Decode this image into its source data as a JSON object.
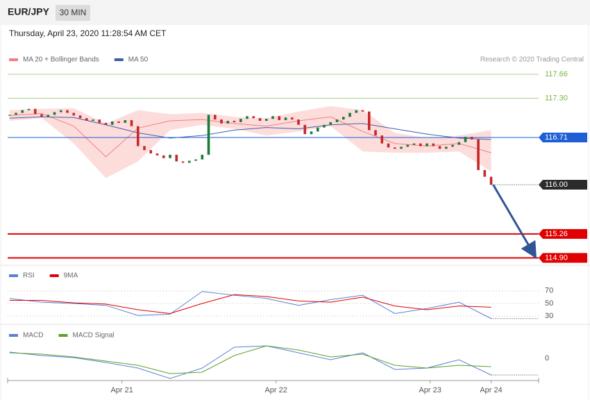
{
  "header": {
    "symbol": "EUR/JPY",
    "interval": "30 MIN",
    "timestamp": "Thursday, April 23, 2020 11:28:54 AM CET",
    "credit": "Research © 2020 Trading Central"
  },
  "chart_data": [
    {
      "type": "candlestick",
      "up_color": "#1b7a3a",
      "down_color": "#c62828",
      "xlim": [
        -0.6,
        164.8
      ],
      "ylim": [
        114.8,
        118.4
      ],
      "x": [
        0,
        2,
        4,
        6,
        8,
        10,
        12,
        14,
        16,
        18,
        20,
        22,
        24,
        26,
        28,
        30,
        32,
        34,
        36,
        38,
        40,
        42,
        44,
        46,
        48,
        50,
        52,
        54,
        56,
        58,
        60,
        62,
        64,
        66,
        68,
        70,
        72,
        74,
        76,
        78,
        80,
        82,
        84,
        86,
        88,
        90,
        92,
        94,
        96,
        98,
        100,
        102,
        104,
        106,
        108,
        110,
        112,
        114,
        116,
        118,
        120,
        122,
        124,
        126,
        128,
        130,
        132,
        134,
        136,
        138,
        140,
        142,
        144,
        146,
        148,
        150
      ],
      "close": [
        117.05,
        117.08,
        117.12,
        117.14,
        117.06,
        117.02,
        117.05,
        117.09,
        117.12,
        117.08,
        117.04,
        117.0,
        116.96,
        116.98,
        116.93,
        116.9,
        116.95,
        116.93,
        116.97,
        116.88,
        116.58,
        116.52,
        116.47,
        116.44,
        116.4,
        116.45,
        116.35,
        116.33,
        116.36,
        116.38,
        116.45,
        117.05,
        116.98,
        116.92,
        116.96,
        116.94,
        116.99,
        117.03,
        117.0,
        116.96,
        116.99,
        117.03,
        116.97,
        117.01,
        116.98,
        116.9,
        116.76,
        116.8,
        116.86,
        116.9,
        116.94,
        116.98,
        117.02,
        117.08,
        117.12,
        117.1,
        116.82,
        116.74,
        116.62,
        116.56,
        116.54,
        116.57,
        116.6,
        116.62,
        116.58,
        116.62,
        116.58,
        116.54,
        116.57,
        116.6,
        116.64,
        116.72,
        116.68,
        116.22,
        116.12,
        116.0
      ],
      "series": [
        {
          "name": "MA 20 + Bollinger Bands",
          "color": "#f08080",
          "band_color": "#fcd3d3",
          "x": [
            0,
            10,
            20,
            30,
            40,
            50,
            60,
            70,
            80,
            90,
            100,
            110,
            120,
            130,
            140,
            150
          ],
          "values": [
            117.04,
            117.07,
            116.88,
            116.42,
            116.85,
            116.96,
            116.98,
            116.92,
            116.88,
            116.96,
            117.02,
            116.8,
            116.62,
            116.58,
            116.62,
            116.48
          ],
          "upper": [
            117.12,
            117.14,
            117.15,
            116.92,
            117.12,
            117.06,
            117.08,
            117.02,
            117.0,
            117.1,
            117.18,
            117.12,
            116.78,
            116.7,
            116.74,
            116.82
          ],
          "lower": [
            116.96,
            117.0,
            116.62,
            116.1,
            116.35,
            116.82,
            116.9,
            116.84,
            116.74,
            116.8,
            116.88,
            116.5,
            116.48,
            116.48,
            116.5,
            116.2
          ]
        },
        {
          "name": "MA 50",
          "color": "#3f5fa8",
          "x": [
            0,
            10,
            20,
            30,
            40,
            50,
            60,
            70,
            80,
            90,
            100,
            110,
            120,
            130,
            140,
            150
          ],
          "values": [
            117.0,
            117.02,
            117.01,
            116.9,
            116.78,
            116.7,
            116.74,
            116.82,
            116.86,
            116.84,
            116.9,
            116.92,
            116.84,
            116.76,
            116.7,
            116.68
          ]
        }
      ],
      "levels": [
        {
          "value": 117.66,
          "color": "#7cb342",
          "style": "text"
        },
        {
          "value": 117.3,
          "label": "117.30",
          "color": "#7cb342",
          "style": "text"
        },
        {
          "value": 116.71,
          "color": "#1e5fd6",
          "style": "box-solid"
        },
        {
          "value": 116.0,
          "label": "116.00",
          "color": "#2b2b2b",
          "style": "box-dotted"
        },
        {
          "value": 115.26,
          "color": "#e00000",
          "style": "box-thick"
        },
        {
          "value": 114.9,
          "label": "114.90",
          "color": "#e00000",
          "style": "box-thick"
        }
      ]
    },
    {
      "type": "line",
      "xlim": [
        -0.6,
        164.8
      ],
      "ylim": [
        18,
        104
      ],
      "yticks": [
        70,
        50,
        30
      ],
      "x": [
        0,
        10,
        20,
        30,
        40,
        50,
        60,
        70,
        80,
        90,
        100,
        110,
        120,
        130,
        140,
        150
      ],
      "series": [
        {
          "name": "RSI",
          "color": "#5b7fd6",
          "values": [
            58,
            52,
            50,
            47,
            31,
            33,
            69,
            63,
            58,
            47,
            56,
            63,
            34,
            42,
            52,
            26
          ]
        },
        {
          "name": "9MA",
          "color": "#e00000",
          "values": [
            55,
            55,
            51,
            49,
            40,
            34,
            50,
            64,
            61,
            54,
            52,
            60,
            46,
            40,
            46,
            44
          ]
        }
      ]
    },
    {
      "type": "line",
      "xlim": [
        -0.6,
        164.8
      ],
      "ylim": [
        -0.16,
        0.19
      ],
      "yticks": [
        0
      ],
      "xticks": [
        {
          "value": 35,
          "label": "Apr 21"
        },
        {
          "value": 83,
          "label": "Apr 22"
        },
        {
          "value": 131,
          "label": "Apr 23"
        },
        {
          "value": 150,
          "label": "Apr 24"
        }
      ],
      "x": [
        0,
        10,
        20,
        30,
        40,
        50,
        60,
        70,
        80,
        90,
        100,
        110,
        120,
        130,
        140,
        150
      ],
      "series": [
        {
          "name": "MACD",
          "color": "#5b7fd6",
          "values": [
            0.045,
            0.02,
            0.005,
            -0.03,
            -0.07,
            -0.145,
            -0.07,
            0.08,
            0.09,
            0.04,
            -0.01,
            0.04,
            -0.08,
            -0.07,
            -0.01,
            -0.12
          ]
        },
        {
          "name": "MACD Signal",
          "color": "#5aa02c",
          "values": [
            0.04,
            0.03,
            0.01,
            -0.02,
            -0.05,
            -0.11,
            -0.1,
            0.02,
            0.09,
            0.06,
            0.01,
            0.03,
            -0.05,
            -0.07,
            -0.05,
            -0.06
          ]
        }
      ]
    }
  ]
}
